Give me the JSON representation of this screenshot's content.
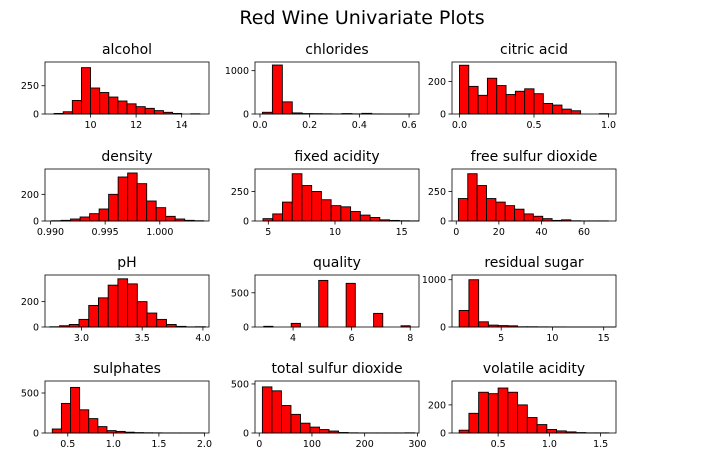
{
  "figure": {
    "title": "Red Wine Univariate Plots"
  },
  "chart_data": [
    {
      "type": "bar",
      "title": "alcohol",
      "xlim": [
        8.0,
        15.2
      ],
      "ylim": [
        0,
        460
      ],
      "xticks": [
        "10",
        "12",
        "14"
      ],
      "xtick_values": [
        10,
        12,
        14
      ],
      "yticks": [
        "0",
        "250"
      ],
      "ytick_values": [
        0,
        250
      ],
      "bin_edges": [
        8.4,
        8.8,
        9.2,
        9.6,
        10.0,
        10.4,
        10.8,
        11.2,
        11.6,
        12.0,
        12.4,
        12.8,
        13.2,
        13.6,
        14.0,
        14.4,
        14.8
      ],
      "values": [
        5,
        20,
        120,
        410,
        230,
        190,
        150,
        115,
        90,
        65,
        50,
        30,
        15,
        5,
        0,
        2
      ]
    },
    {
      "type": "bar",
      "title": "chlorides",
      "xlim": [
        -0.02,
        0.64
      ],
      "ylim": [
        0,
        1200
      ],
      "xticks": [
        "0.0",
        "0.2",
        "0.4",
        "0.6"
      ],
      "xtick_values": [
        0.0,
        0.2,
        0.4,
        0.6
      ],
      "yticks": [
        "0",
        "1000"
      ],
      "ytick_values": [
        0,
        1000
      ],
      "bin_edges": [
        0.01,
        0.05,
        0.09,
        0.13,
        0.17,
        0.21,
        0.25,
        0.29,
        0.33,
        0.37,
        0.41,
        0.45,
        0.49,
        0.53,
        0.57,
        0.61
      ],
      "values": [
        40,
        1130,
        280,
        25,
        10,
        8,
        5,
        2,
        10,
        3,
        15,
        2,
        1,
        1,
        1
      ]
    },
    {
      "type": "bar",
      "title": "citric acid",
      "xlim": [
        -0.05,
        1.05
      ],
      "ylim": [
        0,
        320
      ],
      "xticks": [
        "0.0",
        "0.5",
        "1.0"
      ],
      "xtick_values": [
        0.0,
        0.5,
        1.0
      ],
      "yticks": [
        "0",
        "200"
      ],
      "ytick_values": [
        0,
        200
      ],
      "bin_edges": [
        0.0,
        0.0625,
        0.125,
        0.1875,
        0.25,
        0.3125,
        0.375,
        0.4375,
        0.5,
        0.5625,
        0.625,
        0.6875,
        0.75,
        0.8125,
        0.875,
        0.9375,
        1.0
      ],
      "values": [
        300,
        170,
        115,
        220,
        175,
        120,
        140,
        155,
        125,
        65,
        55,
        30,
        20,
        0,
        0,
        2
      ]
    },
    {
      "type": "bar",
      "title": "density",
      "xlim": [
        0.9895,
        1.0045
      ],
      "ylim": [
        0,
        390
      ],
      "xticks": [
        "0.990",
        "0.995",
        "1.000"
      ],
      "xtick_values": [
        0.99,
        0.995,
        1.0
      ],
      "yticks": [
        "0",
        "200"
      ],
      "ytick_values": [
        0,
        200
      ],
      "bin_edges": [
        0.9901,
        0.99097,
        0.99184,
        0.99271,
        0.99358,
        0.99445,
        0.99532,
        0.99619,
        0.99706,
        0.99793,
        0.9988,
        0.99967,
        1.00054,
        1.00141,
        1.00228,
        1.00315,
        1.00402
      ],
      "values": [
        2,
        5,
        15,
        30,
        55,
        90,
        200,
        330,
        360,
        280,
        150,
        100,
        35,
        15,
        5,
        2
      ]
    },
    {
      "type": "bar",
      "title": "fixed acidity",
      "xlim": [
        4.0,
        16.3
      ],
      "ylim": [
        0,
        440
      ],
      "xticks": [
        "5",
        "10",
        "15"
      ],
      "xtick_values": [
        5,
        10,
        15
      ],
      "yticks": [
        "0",
        "250"
      ],
      "ytick_values": [
        0,
        250
      ],
      "bin_edges": [
        4.6,
        5.33,
        6.06,
        6.79,
        7.52,
        8.25,
        8.98,
        9.71,
        10.44,
        11.17,
        11.9,
        12.63,
        13.36,
        14.09,
        14.82,
        15.55,
        16.28
      ],
      "values": [
        20,
        60,
        160,
        400,
        300,
        250,
        180,
        130,
        120,
        80,
        50,
        30,
        10,
        5,
        2,
        1
      ]
    },
    {
      "type": "bar",
      "title": "free sulfur dioxide",
      "xlim": [
        -2.0,
        75.0
      ],
      "ylim": [
        0,
        440
      ],
      "xticks": [
        "0",
        "20",
        "40",
        "60"
      ],
      "xtick_values": [
        0,
        20,
        40,
        60
      ],
      "yticks": [
        "0",
        "250"
      ],
      "ytick_values": [
        0,
        250
      ],
      "bin_edges": [
        1.0,
        5.4,
        9.8,
        14.2,
        18.6,
        23.0,
        27.4,
        31.8,
        36.2,
        40.6,
        45.0,
        49.4,
        53.8,
        58.2,
        62.6,
        67.0,
        71.4
      ],
      "values": [
        190,
        400,
        300,
        190,
        160,
        130,
        100,
        60,
        40,
        20,
        5,
        10,
        2,
        1,
        1,
        1
      ]
    },
    {
      "type": "bar",
      "title": "pH",
      "xlim": [
        2.7,
        4.05
      ],
      "ylim": [
        0,
        410
      ],
      "xticks": [
        "3.0",
        "3.5",
        "4.0"
      ],
      "xtick_values": [
        3.0,
        3.5,
        4.0
      ],
      "yticks": [
        "0",
        "200"
      ],
      "ytick_values": [
        0,
        200
      ],
      "bin_edges": [
        2.74,
        2.82,
        2.9,
        2.98,
        3.06,
        3.14,
        3.22,
        3.3,
        3.38,
        3.46,
        3.54,
        3.62,
        3.7,
        3.78,
        3.86,
        3.94,
        4.02
      ],
      "values": [
        2,
        10,
        20,
        60,
        170,
        230,
        330,
        380,
        340,
        200,
        110,
        60,
        20,
        5,
        1,
        2
      ]
    },
    {
      "type": "bar",
      "title": "quality",
      "xlim": [
        2.7,
        8.3
      ],
      "ylim": [
        0,
        760
      ],
      "xticks": [
        "4",
        "6",
        "8"
      ],
      "xtick_values": [
        4,
        6,
        8
      ],
      "yticks": [
        "0",
        "500"
      ],
      "ytick_values": [
        0,
        500
      ],
      "bin_edges": [
        3.0,
        3.3125,
        3.625,
        3.9375,
        4.25,
        4.5625,
        4.875,
        5.1875,
        5.5,
        5.8125,
        6.125,
        6.4375,
        6.75,
        7.0625,
        7.375,
        7.6875,
        8.0
      ],
      "values": [
        10,
        0,
        0,
        53,
        0,
        0,
        681,
        0,
        0,
        638,
        0,
        0,
        199,
        0,
        0,
        18
      ]
    },
    {
      "type": "bar",
      "title": "residual sugar",
      "xlim": [
        0.2,
        16.2
      ],
      "ylim": [
        0,
        1100
      ],
      "xticks": [
        "5",
        "10",
        "15"
      ],
      "xtick_values": [
        5,
        10,
        15
      ],
      "yticks": [
        "0",
        "1000"
      ],
      "ytick_values": [
        0,
        1000
      ],
      "bin_edges": [
        0.9,
        1.85,
        2.8,
        3.75,
        4.7,
        5.65,
        6.6,
        7.55,
        8.5,
        9.45,
        10.4,
        11.35,
        12.3,
        13.25,
        14.2,
        15.15,
        16.1
      ],
      "values": [
        350,
        1000,
        110,
        40,
        30,
        25,
        5,
        5,
        3,
        2,
        2,
        1,
        1,
        1,
        1,
        1
      ]
    },
    {
      "type": "bar",
      "title": "sulphates",
      "xlim": [
        0.25,
        2.05
      ],
      "ylim": [
        0,
        650
      ],
      "xticks": [
        "0.5",
        "1.0",
        "1.5",
        "2.0"
      ],
      "xtick_values": [
        0.5,
        1.0,
        1.5,
        2.0
      ],
      "yticks": [
        "0",
        "500"
      ],
      "ytick_values": [
        0,
        500
      ],
      "bin_edges": [
        0.33,
        0.43,
        0.53,
        0.63,
        0.73,
        0.83,
        0.93,
        1.03,
        1.13,
        1.23,
        1.33,
        1.43,
        1.53,
        1.63,
        1.73,
        1.83,
        1.93,
        2.0
      ],
      "values": [
        50,
        370,
        570,
        290,
        180,
        80,
        30,
        20,
        10,
        5,
        3,
        2,
        1,
        1,
        1,
        1,
        1
      ]
    },
    {
      "type": "bar",
      "title": "total sulfur dioxide",
      "xlim": [
        -8.0,
        303.0
      ],
      "ylim": [
        0,
        530
      ],
      "xticks": [
        "0",
        "100",
        "200",
        "300"
      ],
      "xtick_values": [
        0,
        100,
        200,
        300
      ],
      "yticks": [
        "0",
        "500"
      ],
      "ytick_values": [
        0,
        500
      ],
      "bin_edges": [
        6.0,
        24.06,
        42.12,
        60.18,
        78.24,
        96.3,
        114.36,
        132.42,
        150.48,
        168.54,
        186.6,
        204.66,
        222.72,
        240.78,
        258.84,
        276.9,
        294.96
      ],
      "values": [
        470,
        430,
        280,
        190,
        100,
        60,
        35,
        20,
        5,
        2,
        1,
        1,
        1,
        1,
        1,
        2
      ]
    },
    {
      "type": "bar",
      "title": "volatile acidity",
      "xlim": [
        0.05,
        1.65
      ],
      "ylim": [
        0,
        370
      ],
      "xticks": [
        "0.5",
        "1.0",
        "1.5"
      ],
      "xtick_values": [
        0.5,
        1.0,
        1.5
      ],
      "yticks": [
        "0",
        "200"
      ],
      "ytick_values": [
        0,
        200
      ],
      "bin_edges": [
        0.12,
        0.215,
        0.31,
        0.405,
        0.5,
        0.595,
        0.69,
        0.785,
        0.88,
        0.975,
        1.07,
        1.165,
        1.26,
        1.355,
        1.45,
        1.545,
        1.58
      ],
      "values": [
        20,
        140,
        290,
        280,
        320,
        290,
        200,
        110,
        60,
        25,
        15,
        8,
        3,
        1,
        1,
        1
      ]
    }
  ]
}
